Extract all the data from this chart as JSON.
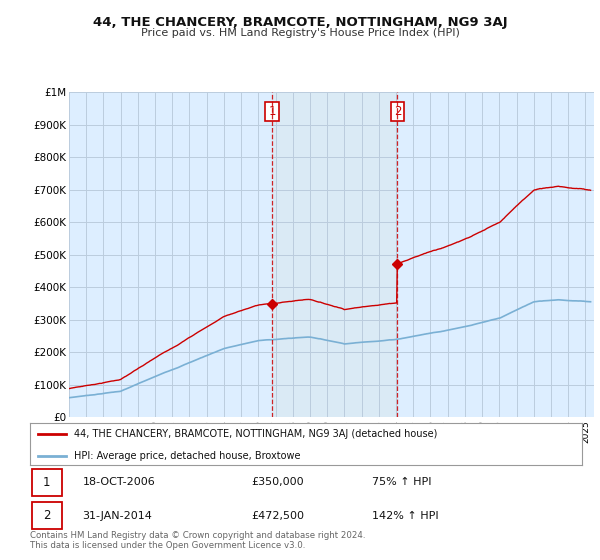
{
  "title": "44, THE CHANCERY, BRAMCOTE, NOTTINGHAM, NG9 3AJ",
  "subtitle": "Price paid vs. HM Land Registry's House Price Index (HPI)",
  "ylim": [
    0,
    1000000
  ],
  "yticks": [
    0,
    100000,
    200000,
    300000,
    400000,
    500000,
    600000,
    700000,
    800000,
    900000,
    1000000
  ],
  "ytick_labels": [
    "£0",
    "£100K",
    "£200K",
    "£300K",
    "£400K",
    "£500K",
    "£600K",
    "£700K",
    "£800K",
    "£900K",
    "£1M"
  ],
  "xlim_start": 1995.0,
  "xlim_end": 2025.5,
  "sale1_date": 2006.8,
  "sale1_price": 350000,
  "sale1_label": "1",
  "sale2_date": 2014.08,
  "sale2_price": 472500,
  "sale2_label": "2",
  "legend_red_label": "44, THE CHANCERY, BRAMCOTE, NOTTINGHAM, NG9 3AJ (detached house)",
  "legend_blue_label": "HPI: Average price, detached house, Broxtowe",
  "annotation1_date": "18-OCT-2006",
  "annotation1_price": "£350,000",
  "annotation1_pct": "75% ↑ HPI",
  "annotation2_date": "31-JAN-2014",
  "annotation2_price": "£472,500",
  "annotation2_pct": "142% ↑ HPI",
  "footer": "Contains HM Land Registry data © Crown copyright and database right 2024.\nThis data is licensed under the Open Government Licence v3.0.",
  "red_color": "#cc0000",
  "blue_color": "#7ab0d4",
  "shade_color": "#daeaf5",
  "background_color": "#ddeeff",
  "plot_bg": "#ffffff",
  "grid_color": "#bbccdd"
}
